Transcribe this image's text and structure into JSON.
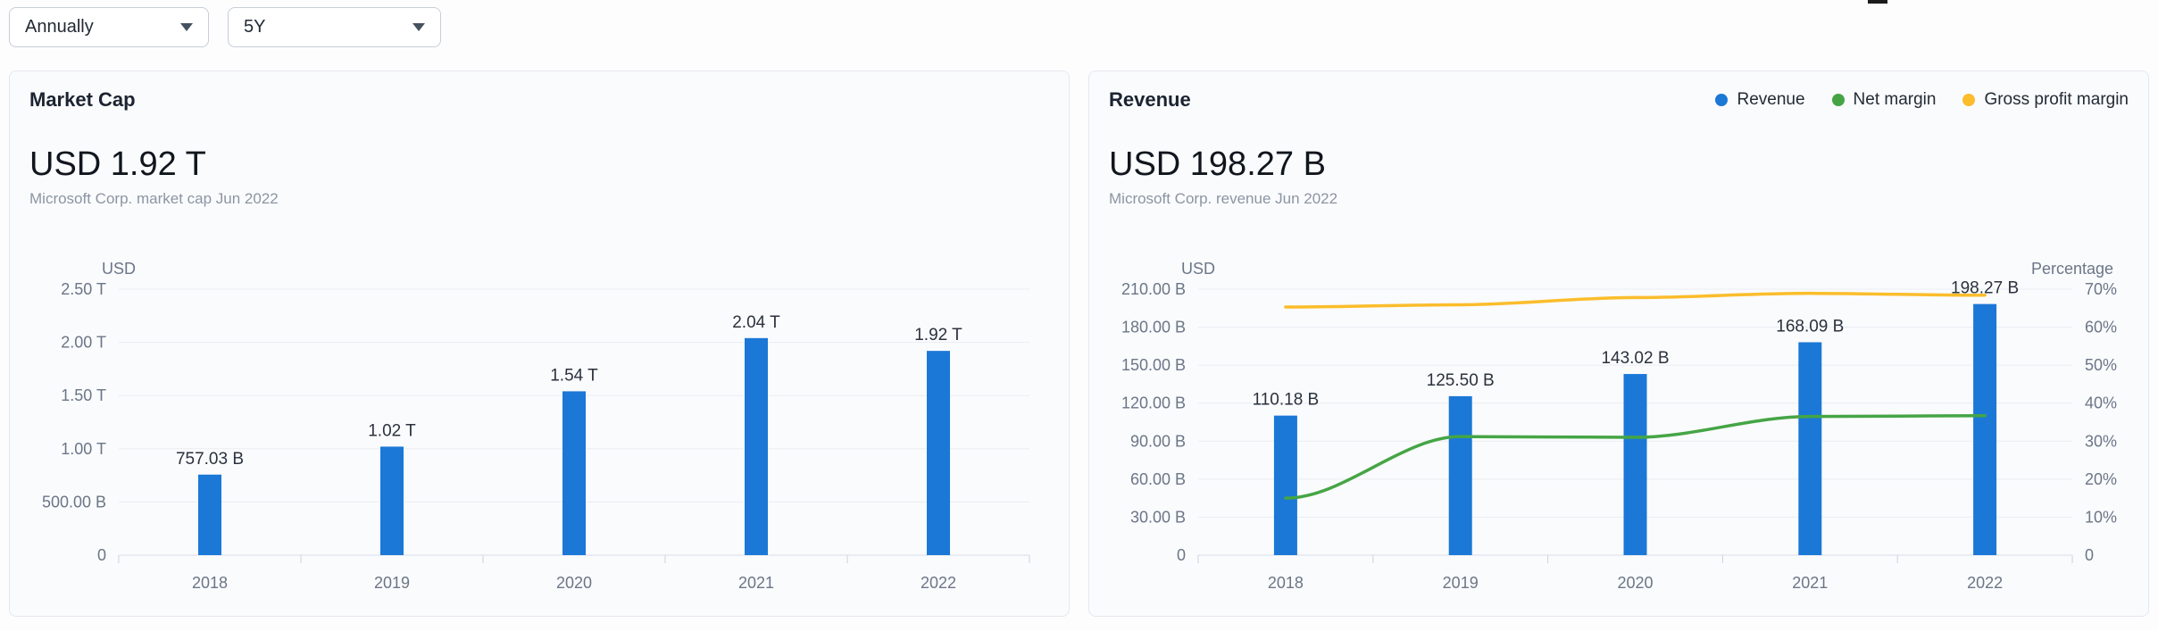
{
  "toolbar": {
    "frequency_dropdown": {
      "value": "Annually"
    },
    "range_dropdown": {
      "value": "5Y"
    }
  },
  "market_cap_panel": {
    "title": "Market Cap",
    "headline_value": "USD 1.92 T",
    "subtitle": "Microsoft Corp. market cap Jun 2022"
  },
  "revenue_panel": {
    "title": "Revenue",
    "headline_value": "USD 198.27 B",
    "subtitle": "Microsoft Corp. revenue Jun 2022",
    "legend": [
      {
        "label": "Revenue",
        "color": "#1b78d6"
      },
      {
        "label": "Net margin",
        "color": "#45a545"
      },
      {
        "label": "Gross profit margin",
        "color": "#fbbd2b"
      }
    ]
  },
  "chart_data": [
    {
      "id": "marketcap",
      "type": "bar",
      "title": "Market Cap",
      "categories": [
        "2018",
        "2019",
        "2020",
        "2021",
        "2022"
      ],
      "series": [
        {
          "name": "Market cap",
          "type": "bar",
          "axis": "left",
          "unit": "USD billions",
          "values": [
            757.03,
            1020,
            1540,
            2040,
            1920
          ],
          "labels": [
            "757.03 B",
            "1.02 T",
            "1.54 T",
            "2.04 T",
            "1.92 T"
          ],
          "color": "#1b78d6"
        }
      ],
      "left_axis": {
        "name": "USD",
        "max": 2500,
        "ticks": [
          {
            "v": 0,
            "label": "0"
          },
          {
            "v": 500,
            "label": "500.00 B"
          },
          {
            "v": 1000,
            "label": "1.00 T"
          },
          {
            "v": 1500,
            "label": "1.50 T"
          },
          {
            "v": 2000,
            "label": "2.00 T"
          },
          {
            "v": 2500,
            "label": "2.50 T"
          }
        ]
      },
      "grid": true,
      "legend_position": "none"
    },
    {
      "id": "revenue",
      "type": "bar+line",
      "title": "Revenue",
      "categories": [
        "2018",
        "2019",
        "2020",
        "2021",
        "2022"
      ],
      "series": [
        {
          "name": "Revenue",
          "type": "bar",
          "axis": "left",
          "unit": "USD billions",
          "values": [
            110.18,
            125.5,
            143.02,
            168.09,
            198.27
          ],
          "labels": [
            "110.18 B",
            "125.50 B",
            "143.02 B",
            "168.09 B",
            "198.27 B"
          ],
          "color": "#1b78d6"
        },
        {
          "name": "Net margin",
          "type": "line",
          "axis": "right",
          "unit": "percent",
          "values": [
            15.0,
            31.2,
            31.0,
            36.5,
            36.7
          ],
          "color": "#45a545"
        },
        {
          "name": "Gross profit margin",
          "type": "line",
          "axis": "right",
          "unit": "percent",
          "values": [
            65.3,
            65.9,
            67.8,
            68.9,
            68.4
          ],
          "color": "#fbbd2b"
        }
      ],
      "left_axis": {
        "name": "USD",
        "max": 210,
        "ticks": [
          {
            "v": 0,
            "label": "0"
          },
          {
            "v": 30,
            "label": "30.00 B"
          },
          {
            "v": 60,
            "label": "60.00 B"
          },
          {
            "v": 90,
            "label": "90.00 B"
          },
          {
            "v": 120,
            "label": "120.00 B"
          },
          {
            "v": 150,
            "label": "150.00 B"
          },
          {
            "v": 180,
            "label": "180.00 B"
          },
          {
            "v": 210,
            "label": "210.00 B"
          }
        ]
      },
      "right_axis": {
        "name": "Percentage",
        "max": 70,
        "ticks": [
          {
            "v": 0,
            "label": "0"
          },
          {
            "v": 10,
            "label": "10%"
          },
          {
            "v": 20,
            "label": "20%"
          },
          {
            "v": 30,
            "label": "30%"
          },
          {
            "v": 40,
            "label": "40%"
          },
          {
            "v": 50,
            "label": "50%"
          },
          {
            "v": 60,
            "label": "60%"
          },
          {
            "v": 70,
            "label": "70%"
          }
        ]
      },
      "grid": true,
      "legend_position": "top-right"
    }
  ]
}
